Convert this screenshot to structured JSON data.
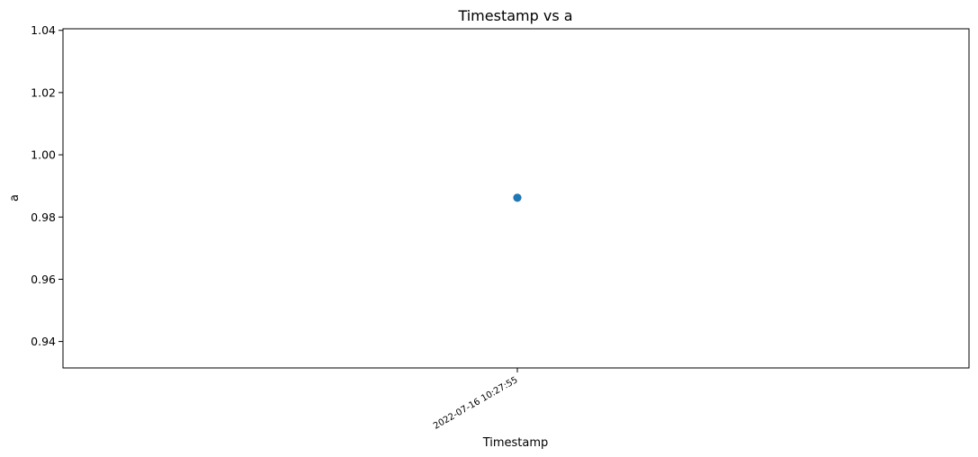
{
  "chart_data": {
    "type": "scatter",
    "title": "Timestamp vs a",
    "xlabel": "Timestamp",
    "ylabel": "a",
    "x": [
      "2022-07-16 10:27:55"
    ],
    "y": [
      0.9862
    ],
    "xticks": [
      "2022-07-16 10:27:55"
    ],
    "yticks": [
      0.94,
      0.96,
      0.98,
      1.0,
      1.02,
      1.04
    ],
    "ytick_labels": [
      "0.94",
      "0.96",
      "0.98",
      "1.00",
      "1.02",
      "1.04"
    ],
    "ylim": [
      0.9315,
      1.0405
    ],
    "grid": false,
    "legend": false,
    "colors": {
      "marker": "#1f77b4",
      "axes": "#000000"
    }
  }
}
